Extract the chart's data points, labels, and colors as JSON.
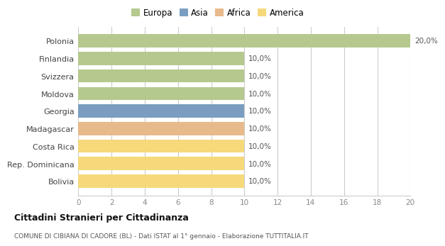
{
  "countries": [
    "Polonia",
    "Finlandia",
    "Svizzera",
    "Moldova",
    "Georgia",
    "Madagascar",
    "Costa Rica",
    "Rep. Dominicana",
    "Bolivia"
  ],
  "values": [
    20.0,
    10.0,
    10.0,
    10.0,
    10.0,
    10.0,
    10.0,
    10.0,
    10.0
  ],
  "labels": [
    "20,0%",
    "10,0%",
    "10,0%",
    "10,0%",
    "10,0%",
    "10,0%",
    "10,0%",
    "10,0%",
    "10,0%"
  ],
  "colors": [
    "#b5c98e",
    "#b5c98e",
    "#b5c98e",
    "#b5c98e",
    "#7b9ec0",
    "#e8b98a",
    "#f5d97a",
    "#f5d97a",
    "#f5d97a"
  ],
  "legend_labels": [
    "Europa",
    "Asia",
    "Africa",
    "America"
  ],
  "legend_colors": [
    "#b5c98e",
    "#7b9ec0",
    "#e8b98a",
    "#f5d97a"
  ],
  "xlim": [
    0,
    20
  ],
  "xticks": [
    0,
    2,
    4,
    6,
    8,
    10,
    12,
    14,
    16,
    18,
    20
  ],
  "title": "Cittadini Stranieri per Cittadinanza",
  "subtitle": "COMUNE DI CIBIANA DI CADORE (BL) - Dati ISTAT al 1° gennaio - Elaborazione TUTTITALIA.IT",
  "bg_color": "#ffffff",
  "grid_color": "#cccccc",
  "bar_height": 0.75
}
